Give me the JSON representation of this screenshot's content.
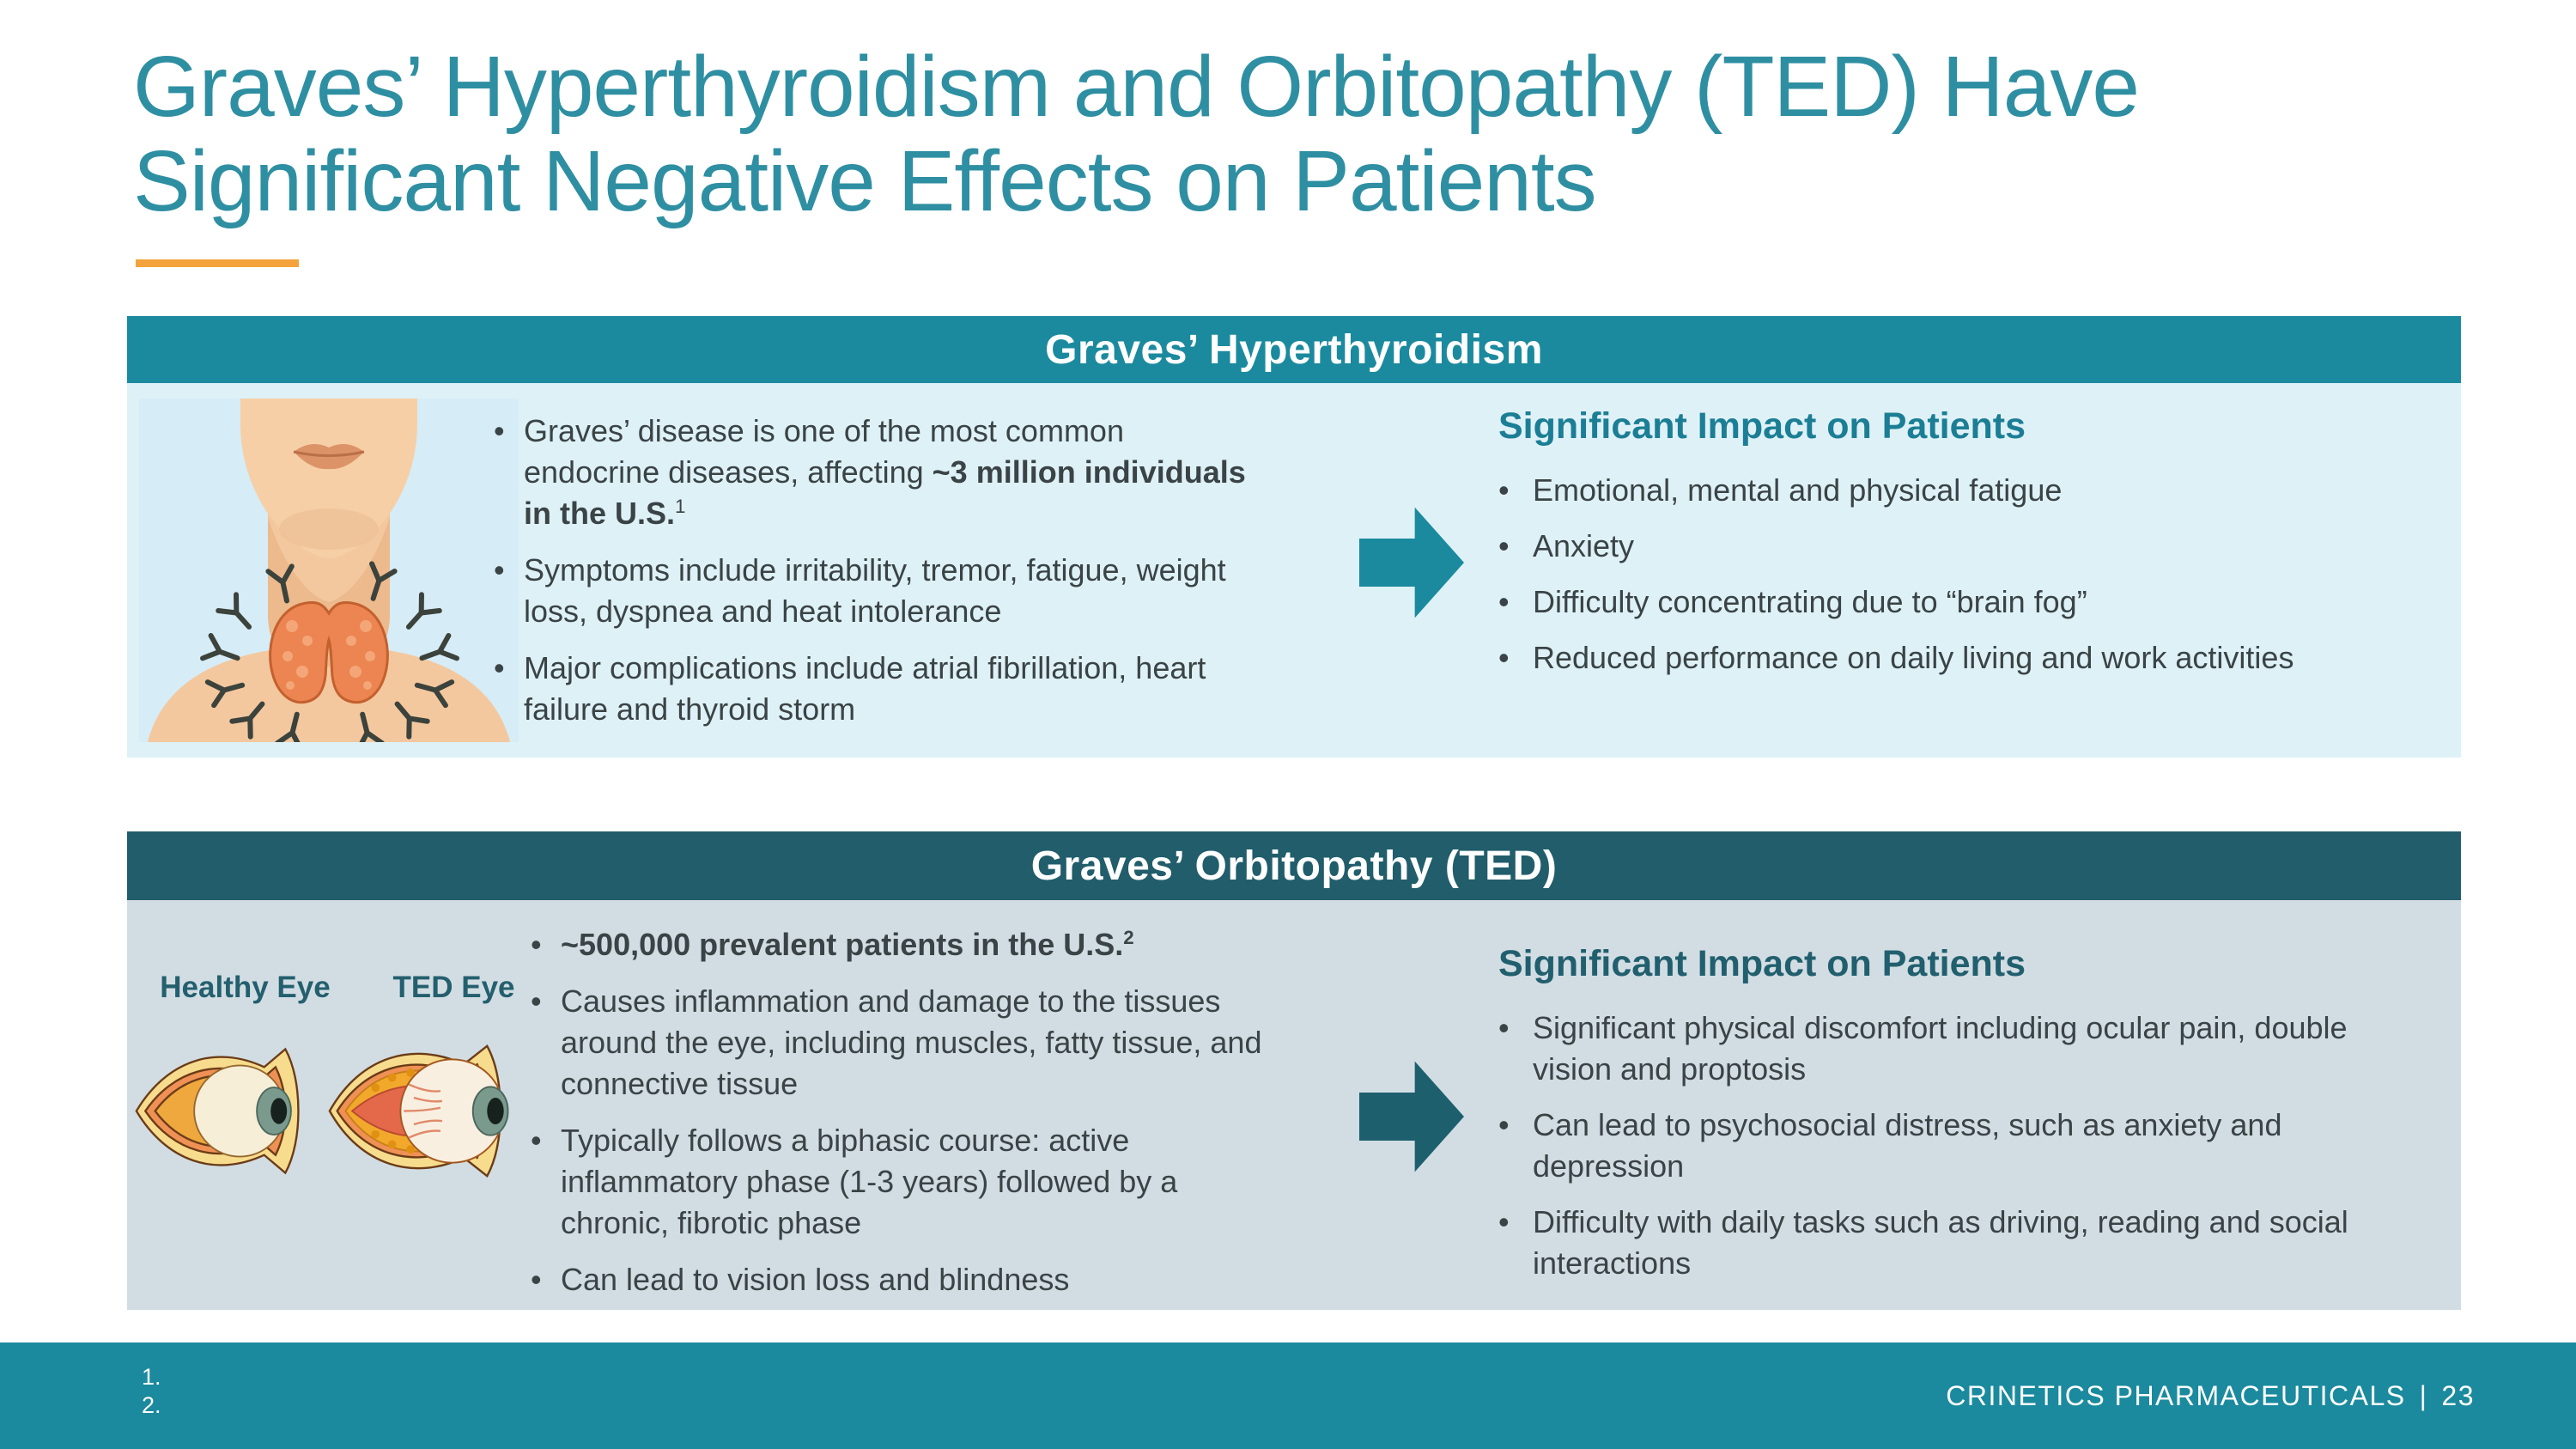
{
  "title_lines": [
    "Graves’ Hyperthyroidism and Orbitopathy (TED) Have",
    "Significant Negative Effects on Patients"
  ],
  "colors": {
    "title_teal": "#2f8fa2",
    "accent_orange": "#f4a33c",
    "section1_header_bg": "#1b8a9e",
    "section1_body_bg": "#def1f7",
    "section2_header_bg": "#215d6b",
    "section2_body_bg": "#d2dde3",
    "arrow1": "#1b8a9e",
    "arrow2": "#1e5f6e",
    "footer_bg": "#1b8a9e",
    "body_text": "#3a4345"
  },
  "sections": [
    {
      "header": "Graves’ Hyperthyroidism",
      "illustration": "thyroid-neck-with-antibodies",
      "bullets": [
        {
          "runs": [
            {
              "t": "Graves’ disease is one of the most common endocrine diseases, affecting "
            },
            {
              "t": "~3 million individuals in the U.S.",
              "b": true
            },
            {
              "t": "1",
              "sup": true
            }
          ]
        },
        {
          "runs": [
            {
              "t": "Symptoms include irritability, tremor, fatigue, weight loss, dyspnea and heat intolerance"
            }
          ]
        },
        {
          "runs": [
            {
              "t": "Major complications include atrial fibrillation, heart failure and thyroid storm"
            }
          ]
        }
      ],
      "impact_heading": "Significant Impact on Patients",
      "impact_bullets": [
        "Emotional, mental and physical fatigue",
        "Anxiety",
        "Difficulty concentrating due to “brain fog”",
        "Reduced performance on daily living and work activities"
      ]
    },
    {
      "header": "Graves’ Orbitopathy (TED)",
      "illustration": "healthy-eye-vs-ted-eye-cross-section",
      "eye_labels": {
        "healthy": "Healthy Eye",
        "ted": "TED Eye"
      },
      "bullets": [
        {
          "runs": [
            {
              "t": "~500,000 prevalent patients in the U.S.",
              "b": true
            },
            {
              "t": "2",
              "b": true,
              "sup": true
            }
          ]
        },
        {
          "runs": [
            {
              "t": "Causes inflammation and damage to the tissues around the eye, including muscles, fatty tissue, and connective tissue"
            }
          ]
        },
        {
          "runs": [
            {
              "t": "Typically follows a biphasic course: active inflammatory phase (1-3 years) followed by a chronic, fibrotic phase"
            }
          ]
        },
        {
          "runs": [
            {
              "t": "Can lead to vision loss and blindness"
            }
          ]
        }
      ],
      "impact_heading": "Significant Impact on Patients",
      "impact_bullets": [
        "Significant physical discomfort including ocular pain, double vision and proptosis",
        "Can lead to psychosocial distress, such as anxiety and depression",
        "Difficulty with daily tasks such as driving, reading and social interactions"
      ]
    }
  ],
  "footer": {
    "reference_numbers": [
      "1.",
      "2."
    ],
    "company": "CRINETICS PHARMACEUTICALS",
    "separator": "|",
    "page_number": "23"
  }
}
